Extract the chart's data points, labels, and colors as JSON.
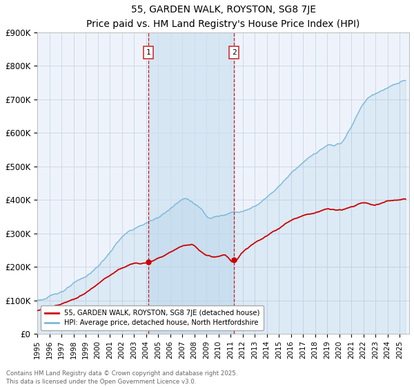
{
  "title": "55, GARDEN WALK, ROYSTON, SG8 7JE",
  "subtitle": "Price paid vs. HM Land Registry's House Price Index (HPI)",
  "ylabel_ticks": [
    "£0",
    "£100K",
    "£200K",
    "£300K",
    "£400K",
    "£500K",
    "£600K",
    "£700K",
    "£800K",
    "£900K"
  ],
  "ylim": [
    0,
    900000
  ],
  "xlim_start": 1995.0,
  "xlim_end": 2025.8,
  "hpi_color": "#7ab8d9",
  "hpi_fill_color": "#d0e8f5",
  "price_color": "#cc0000",
  "vline_color": "#cc0000",
  "shade_color": "#cce0f0",
  "sale1_year": 2004.19,
  "sale2_year": 2011.29,
  "sale1_price": 215000,
  "sale2_price": 222000,
  "legend_house": "55, GARDEN WALK, ROYSTON, SG8 7JE (detached house)",
  "legend_hpi": "HPI: Average price, detached house, North Hertfordshire",
  "footnote": "Contains HM Land Registry data © Crown copyright and database right 2025.\nThis data is licensed under the Open Government Licence v3.0.",
  "background_color": "#ffffff",
  "plot_bg_color": "#eef3fb",
  "grid_color": "#d0d8e8"
}
